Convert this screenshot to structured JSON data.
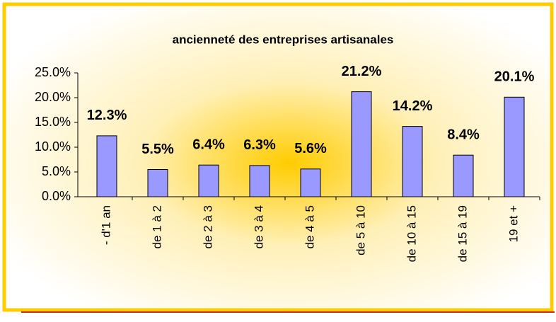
{
  "chart_data": {
    "type": "bar",
    "title": "ancienneté des entreprises artisanales",
    "categories": [
      "- d'1 an",
      "de 1 à 2",
      "de 2 à 3",
      "de 3 à 4",
      "de 4 à 5",
      "de 5 à 10",
      "de 10 à 15",
      "de 15 à 19",
      "19 et +"
    ],
    "values": [
      12.3,
      5.5,
      6.4,
      6.3,
      5.6,
      21.2,
      14.2,
      8.4,
      20.1
    ],
    "value_labels": [
      "12.3%",
      "5.5%",
      "6.4%",
      "6.3%",
      "5.6%",
      "21.2%",
      "14.2%",
      "8.4%",
      "20.1%"
    ],
    "color": "#9999ff",
    "ylim": [
      0,
      25
    ],
    "yticks": [
      {
        "value": 0,
        "label": "0.0%"
      },
      {
        "value": 5,
        "label": "5.0%"
      },
      {
        "value": 10,
        "label": "10.0%"
      },
      {
        "value": 15,
        "label": "15.0%"
      },
      {
        "value": 20,
        "label": "20.0%"
      },
      {
        "value": 25,
        "label": "25.0%"
      }
    ],
    "grid": false
  }
}
